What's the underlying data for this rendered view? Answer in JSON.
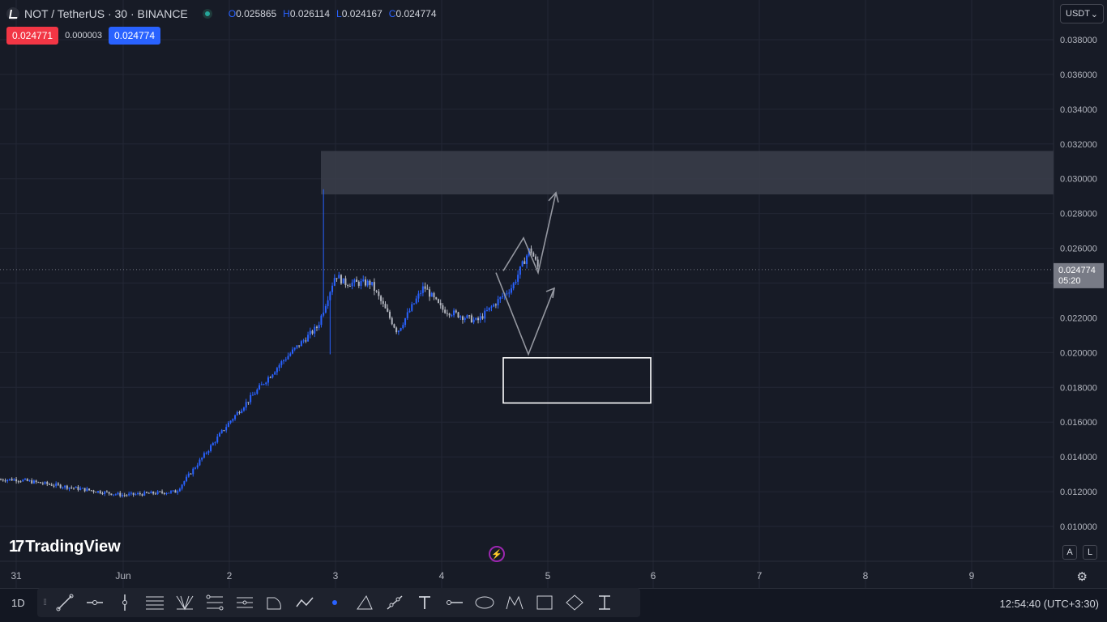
{
  "header": {
    "symbol": "NOT",
    "pair_title": "NOT / TetherUS · 30 · BINANCE",
    "ohlc": {
      "o_label": "O",
      "o": "0.025865",
      "h_label": "H",
      "h": "0.026114",
      "l_label": "L",
      "l": "0.024167",
      "c_label": "C",
      "c": "0.024774"
    },
    "sell_price": "0.024771",
    "spread": "0.000003",
    "buy_price": "0.024774"
  },
  "currency_select": {
    "label": "USDT",
    "icon": "chevron-down-icon"
  },
  "price_axis": {
    "ticks": [
      "0.038000",
      "0.036000",
      "0.034000",
      "0.032000",
      "0.030000",
      "0.028000",
      "0.026000",
      "0.024000",
      "0.022000",
      "0.020000",
      "0.018000",
      "0.016000",
      "0.014000",
      "0.012000",
      "0.010000"
    ],
    "last_price": "0.024774",
    "countdown": "05:20",
    "auto_label": "A",
    "log_label": "L"
  },
  "time_axis": {
    "ticks": [
      "31",
      "Jun",
      "2",
      "3",
      "4",
      "5",
      "6",
      "7",
      "8",
      "9"
    ]
  },
  "branding": {
    "logo_text": "TradingView"
  },
  "bottom_bar": {
    "timeframe": "1D",
    "clock": "12:54:40 (UTC+3:30)"
  },
  "drawing_toolbar": {
    "tools": [
      "trend-line-icon",
      "horizontal-ray-icon",
      "vertical-line-icon",
      "channel-icon",
      "pitchfork-icon",
      "fib-retracement-icon",
      "fib-extension-icon",
      "arc-icon",
      "polyline-icon",
      "dot-icon",
      "path-icon",
      "brush-icon",
      "text-icon",
      "measure-line-icon",
      "ellipse-icon",
      "xabcd-pattern-icon",
      "rectangle-icon",
      "rotated-rectangle-icon",
      "anchored-vwap-icon"
    ]
  },
  "colors": {
    "background": "#171b26",
    "up_candle": "#2962ff",
    "down_candle": "#b2b5be",
    "zone": "#3b3e4b",
    "accent": "#2962ff",
    "sell": "#f23645"
  },
  "chart_data": {
    "type": "candlestick",
    "symbol": "NOT/USDT",
    "interval": "30",
    "ylim": [
      0.0095,
      0.0395
    ],
    "x_ticks": [
      "31",
      "Jun",
      "2",
      "3",
      "4",
      "5",
      "6",
      "7",
      "8",
      "9"
    ],
    "price_path": [
      {
        "date": "31",
        "price": 0.0127
      },
      {
        "date": "Jun",
        "price": 0.0118
      },
      {
        "date": "Jun 1 12:00",
        "price": 0.012
      },
      {
        "date": "2",
        "price": 0.016
      },
      {
        "date": "2 12:00",
        "price": 0.0195
      },
      {
        "date": "2 20:00",
        "price": 0.0215
      },
      {
        "date": "3",
        "price": 0.0245
      },
      {
        "date": "3 02:00",
        "price": 0.024
      },
      {
        "date": "3 08:00",
        "price": 0.024
      },
      {
        "date": "3 14:00",
        "price": 0.0212
      },
      {
        "date": "3 20:00",
        "price": 0.0238
      },
      {
        "date": "4",
        "price": 0.0225
      },
      {
        "date": "4 08:00",
        "price": 0.0218
      },
      {
        "date": "4 16:00",
        "price": 0.0238
      },
      {
        "date": "4 20:00",
        "price": 0.026
      },
      {
        "date": "4 22:00",
        "price": 0.024774
      }
    ],
    "high_spike": 0.0294,
    "last_close": 0.024774,
    "resistance_zone": {
      "from": 0.0291,
      "to": 0.0316
    },
    "support_box": {
      "from": 0.0171,
      "to": 0.0197
    },
    "projection_up_target": 0.0292,
    "projection_down_target": 0.0199
  }
}
